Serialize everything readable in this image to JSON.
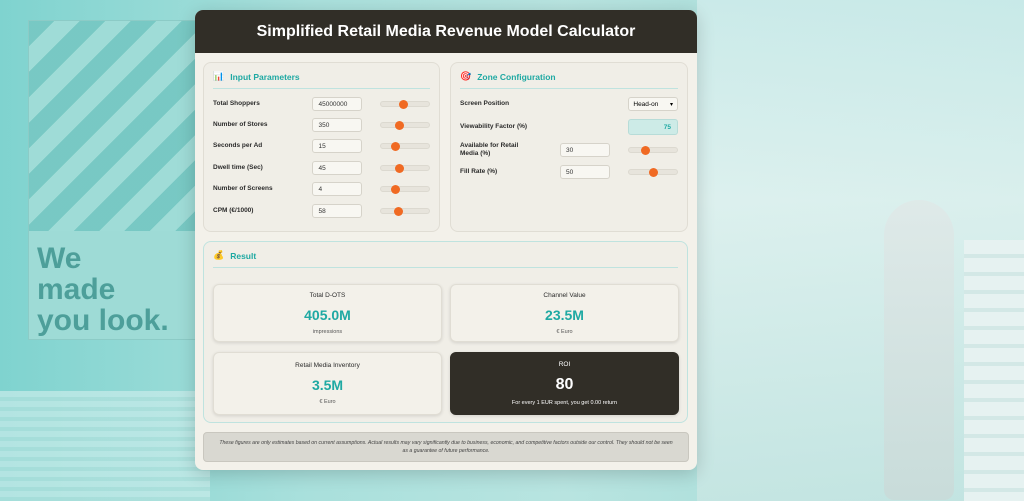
{
  "app": {
    "title": "Simplified Retail Media Revenue Model Calculator"
  },
  "background": {
    "slogan": [
      "We",
      "made",
      "you look."
    ]
  },
  "input_parameters": {
    "title": "Input Parameters",
    "icon": "bar-chart-icon",
    "fields": [
      {
        "label": "Total Shoppers",
        "value": "45000000",
        "slider_level": 0.45
      },
      {
        "label": "Number of Stores",
        "value": "350",
        "slider_level": 0.35
      },
      {
        "label": "Seconds per Ad",
        "value": "15",
        "slider_level": 0.25
      },
      {
        "label": "Dwell time (Sec)",
        "value": "45",
        "slider_level": 0.36
      },
      {
        "label": "Number of Screens",
        "value": "4",
        "slider_level": 0.25
      },
      {
        "label": "CPM (€/1000)",
        "value": "58",
        "slider_level": 0.33
      }
    ]
  },
  "zone_configuration": {
    "title": "Zone Configuration",
    "icon": "target-icon",
    "screen_position": {
      "label": "Screen Position",
      "value": "Head-on"
    },
    "viewability": {
      "label": "Viewability Factor (%)",
      "value": "75"
    },
    "available": {
      "label": "Available for Retail Media (%)",
      "value": "30",
      "slider_level": 0.3
    },
    "fill_rate": {
      "label": "Fill Rate (%)",
      "value": "50",
      "slider_level": 0.5
    }
  },
  "result": {
    "title": "Result",
    "icon": "money-bag-icon",
    "total_dots": {
      "label": "Total D-OTS",
      "value": "405.0M",
      "unit": "impressions"
    },
    "channel_value": {
      "label": "Channel Value",
      "value": "23.5M",
      "unit": "€ Euro"
    },
    "inventory": {
      "label": "Retail Media Inventory",
      "value": "3.5M",
      "unit": "€ Euro"
    },
    "roi": {
      "label": "ROI",
      "value": "80",
      "unit": "For every 1 EUR spent, you get 0.00 return"
    }
  },
  "disclaimer": "These figures are only estimates based on current assumptions. Actual results may vary significantly due to business, economic, and competitive factors outside our control. They should not be seen as a guarantee of future performance.",
  "colors": {
    "accent": "#1fa9a3",
    "header": "#312e27",
    "slider_thumb": "#f06a23"
  }
}
